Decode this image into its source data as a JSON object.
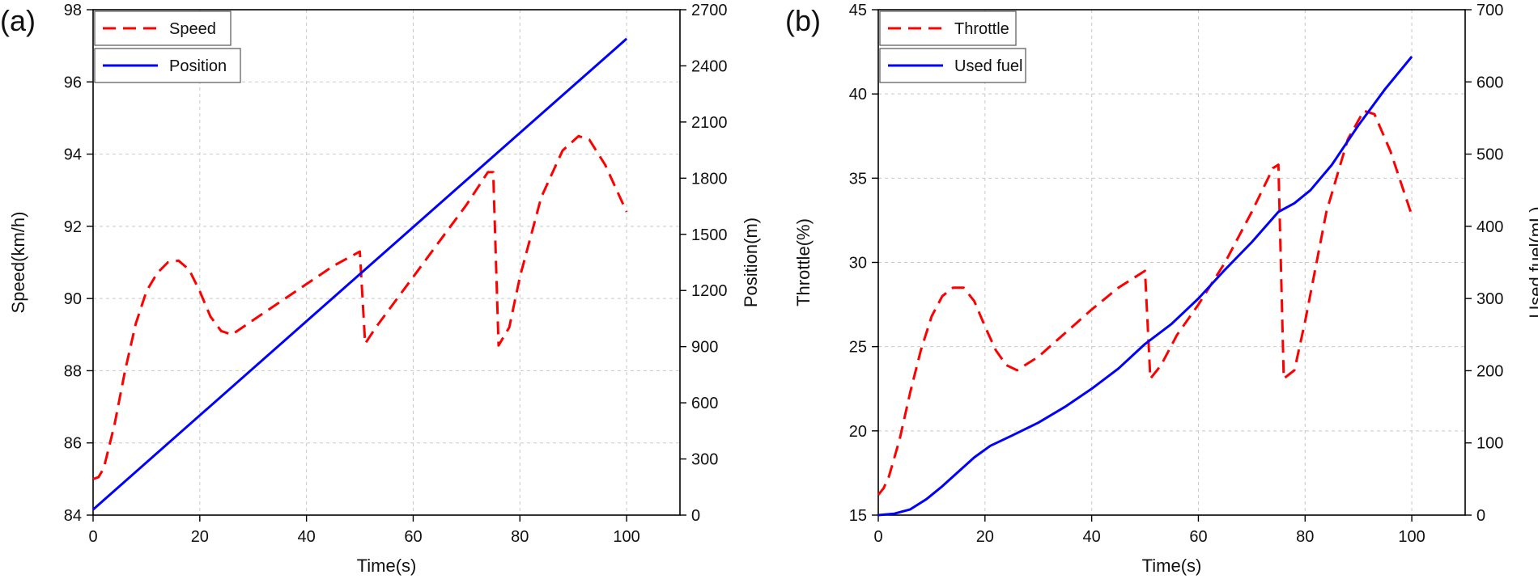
{
  "chart_data": [
    {
      "panel_label": "(a)",
      "type": "line",
      "xlabel": "Time(s)",
      "ylabel_left": "Speed(km/h)",
      "ylabel_right": "Position(m)",
      "xlim": [
        0,
        110
      ],
      "ylim_left": [
        84,
        98
      ],
      "ylim_right": [
        0,
        2700
      ],
      "x_ticks": [
        0,
        20,
        40,
        60,
        80,
        100
      ],
      "y_left_ticks": [
        84,
        86,
        88,
        90,
        92,
        94,
        96,
        98
      ],
      "y_right_ticks": [
        0,
        300,
        600,
        900,
        1200,
        1500,
        1800,
        2100,
        2400,
        2700
      ],
      "grid": true,
      "legend_position": "top-left",
      "series": [
        {
          "name": "Speed",
          "axis": "left",
          "style": "dashed",
          "color": "#ff0000",
          "x": [
            0,
            1,
            2,
            4,
            6,
            8,
            10,
            12,
            14,
            16,
            18,
            20,
            22,
            24,
            26,
            30,
            35,
            40,
            45,
            50,
            51,
            53,
            56,
            60,
            65,
            70,
            74,
            75,
            76,
            78,
            80,
            84,
            88,
            91,
            93,
            96,
            100
          ],
          "values": [
            85,
            85.05,
            85.3,
            86.5,
            88.0,
            89.3,
            90.2,
            90.7,
            91.0,
            91.05,
            90.8,
            90.2,
            89.5,
            89.1,
            89.0,
            89.4,
            89.9,
            90.4,
            90.9,
            91.3,
            88.75,
            89.2,
            89.8,
            90.6,
            91.6,
            92.6,
            93.5,
            93.5,
            88.7,
            89.2,
            90.6,
            92.8,
            94.1,
            94.5,
            94.4,
            93.7,
            92.4
          ]
        },
        {
          "name": "Position",
          "axis": "right",
          "style": "solid",
          "color": "#0000ff",
          "x": [
            0,
            100
          ],
          "values": [
            30,
            2545
          ]
        }
      ]
    },
    {
      "panel_label": "(b)",
      "type": "line",
      "xlabel": "Time(s)",
      "ylabel_left": "Throttle(%)",
      "ylabel_right": "Used fuel(mL)",
      "xlim": [
        0,
        110
      ],
      "ylim_left": [
        15,
        45
      ],
      "ylim_right": [
        0,
        700
      ],
      "x_ticks": [
        0,
        20,
        40,
        60,
        80,
        100
      ],
      "y_left_ticks": [
        15,
        20,
        25,
        30,
        35,
        40,
        45
      ],
      "y_right_ticks": [
        0,
        100,
        200,
        300,
        400,
        500,
        600,
        700
      ],
      "grid": true,
      "legend_position": "top-left",
      "series": [
        {
          "name": "Throttle",
          "axis": "left",
          "style": "dashed",
          "color": "#ff0000",
          "x": [
            0,
            1,
            2,
            4,
            6,
            8,
            10,
            12,
            14,
            16,
            18,
            20,
            22,
            24,
            26,
            30,
            35,
            40,
            45,
            50,
            51,
            53,
            56,
            60,
            65,
            70,
            74,
            75,
            76,
            78,
            80,
            84,
            88,
            91,
            93,
            96,
            100
          ],
          "values": [
            16.2,
            16.6,
            17.3,
            19.5,
            22.3,
            24.8,
            26.8,
            28.0,
            28.5,
            28.5,
            27.7,
            26.2,
            24.8,
            23.9,
            23.6,
            24.4,
            25.8,
            27.2,
            28.5,
            29.5,
            23.1,
            23.9,
            25.7,
            27.5,
            30.0,
            33.0,
            35.6,
            35.8,
            23.1,
            23.6,
            26.5,
            33.0,
            37.3,
            39.0,
            38.8,
            36.6,
            32.8
          ]
        },
        {
          "name": "Used fuel",
          "axis": "right",
          "style": "solid",
          "color": "#0000ff",
          "x": [
            0,
            3,
            6,
            9,
            12,
            15,
            18,
            21,
            25,
            30,
            35,
            40,
            45,
            50,
            55,
            60,
            65,
            70,
            75,
            78,
            81,
            85,
            90,
            95,
            100
          ],
          "values": [
            0,
            2,
            8,
            22,
            40,
            60,
            80,
            96,
            110,
            128,
            150,
            175,
            203,
            237,
            265,
            300,
            340,
            378,
            420,
            432,
            450,
            485,
            540,
            590,
            635
          ]
        }
      ]
    }
  ]
}
